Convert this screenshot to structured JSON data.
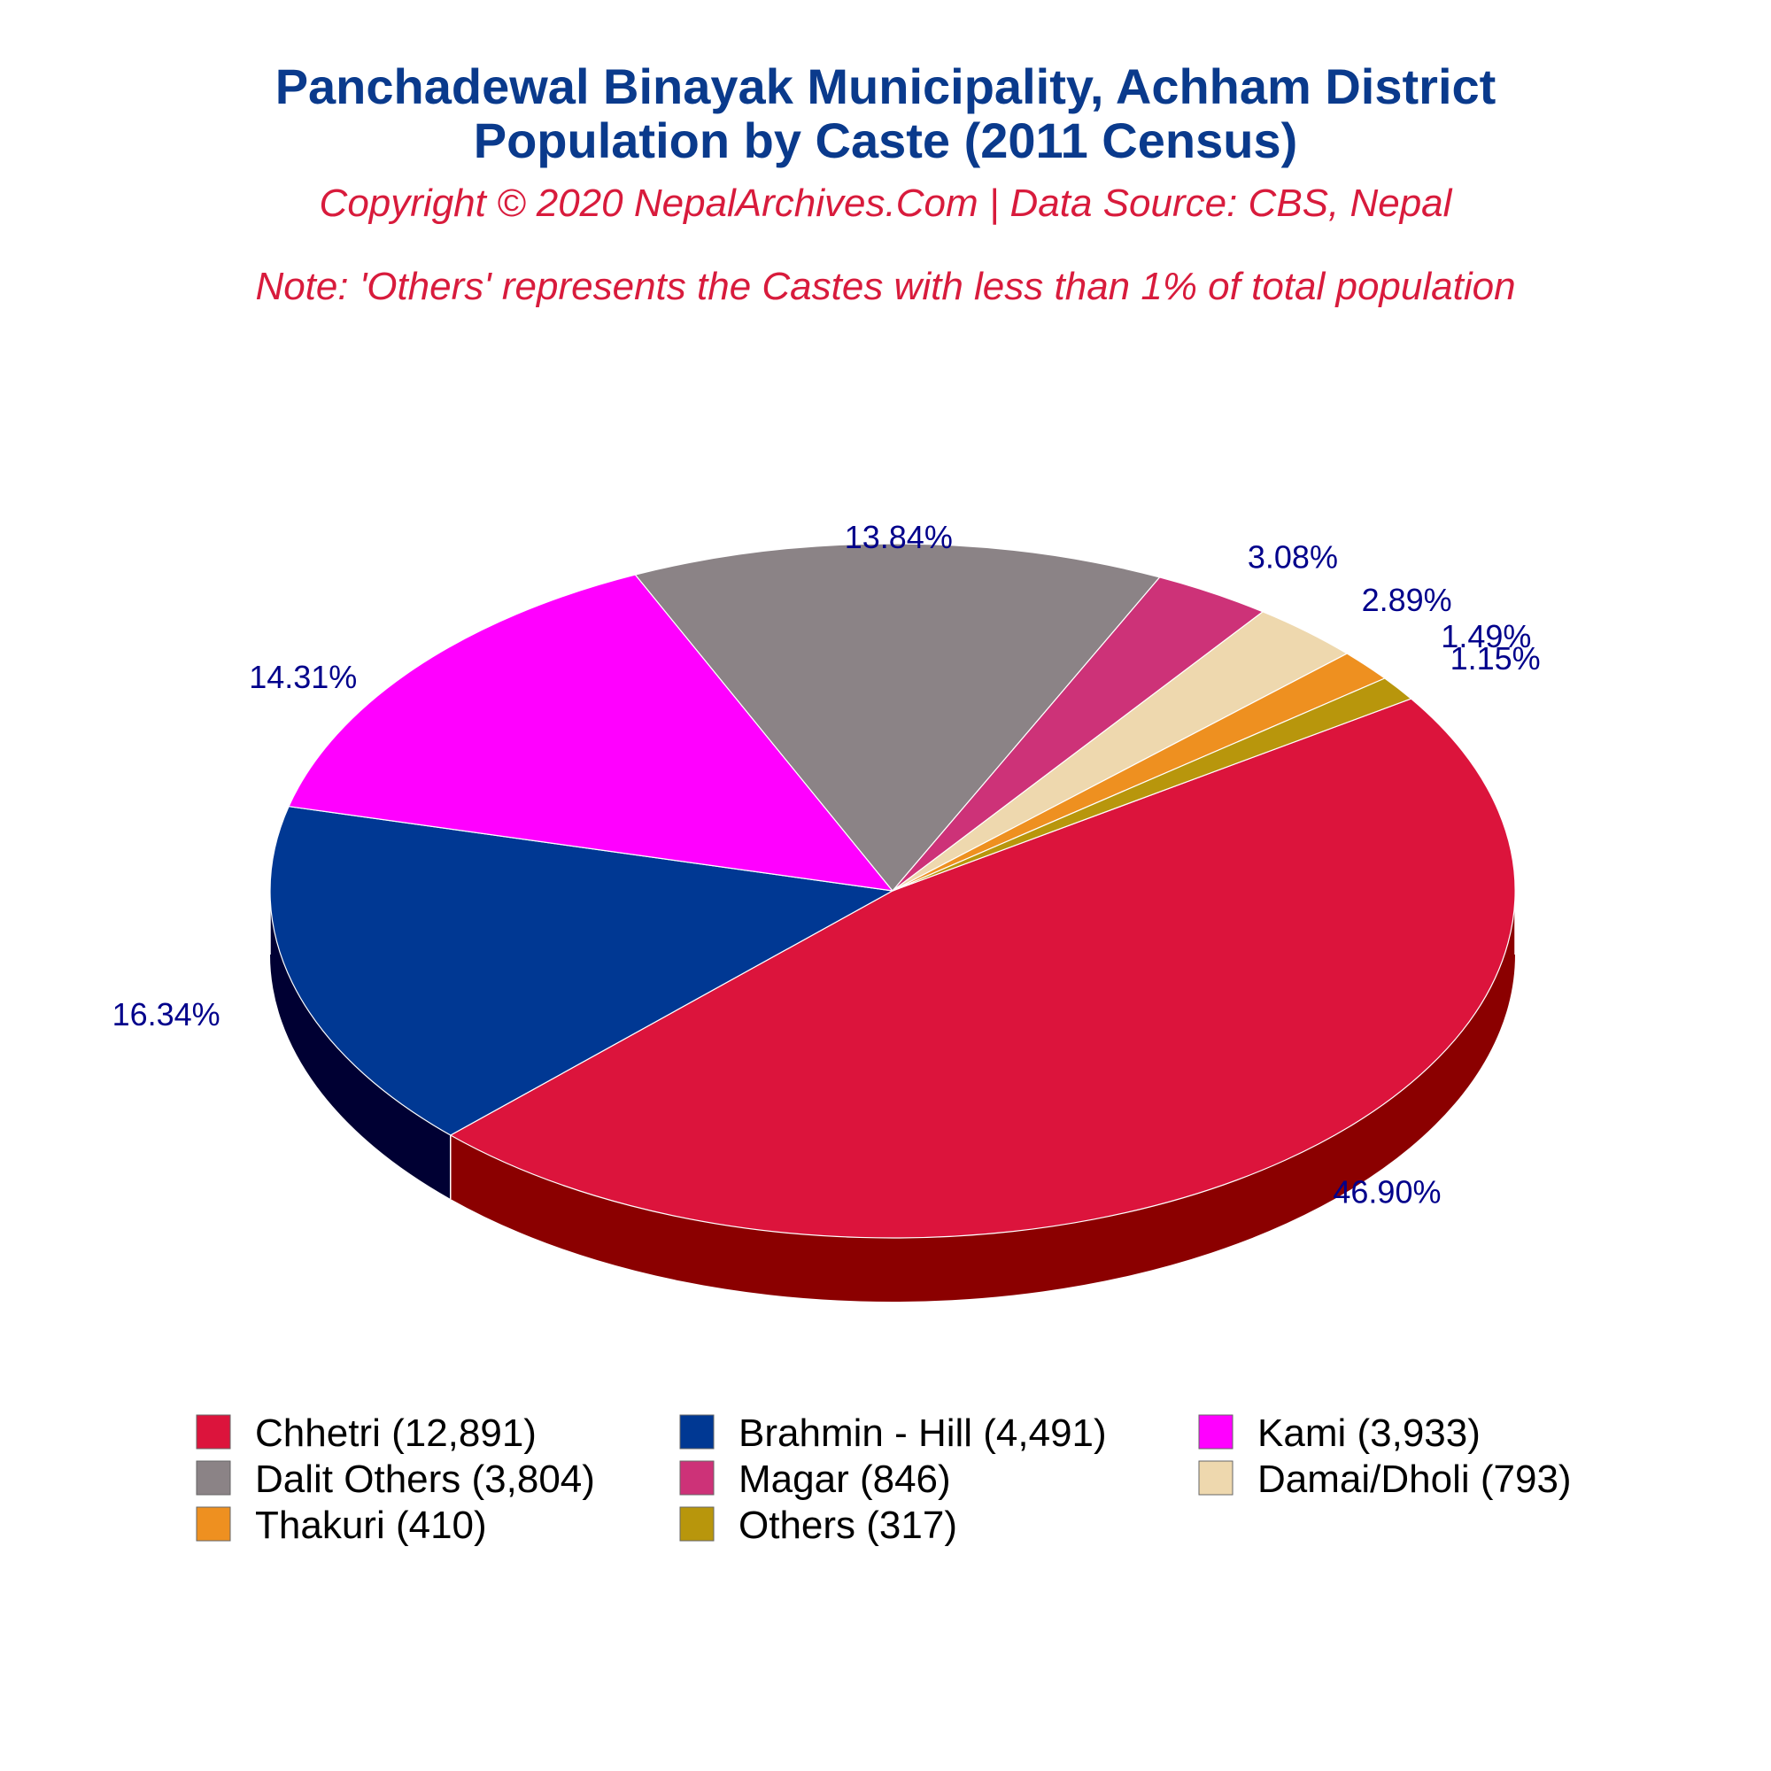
{
  "chart_data": {
    "type": "pie",
    "title_line1": "Panchadewal Binayak Municipality, Achham District",
    "title_line2": "Population by Caste (2011 Census)",
    "copyright": "Copyright © 2020 NepalArchives.Com | Data Source: CBS, Nepal",
    "note": "Note: 'Others' represents the Castes with less than 1% of total population",
    "slices": [
      {
        "name": "Chhetri",
        "value": 12891,
        "percent_label": "46.90%",
        "legend_label": "Chhetri (12,891)",
        "color": "#dc143c",
        "side_color": "#8b0000"
      },
      {
        "name": "Brahmin - Hill",
        "value": 4491,
        "percent_label": "16.34%",
        "legend_label": "Brahmin - Hill (4,491)",
        "color": "#003893",
        "side_color": "#000033"
      },
      {
        "name": "Kami",
        "value": 3933,
        "percent_label": "14.31%",
        "legend_label": "Kami (3,933)",
        "color": "#ff00ff",
        "side_color": "#a000a0"
      },
      {
        "name": "Dalit Others",
        "value": 3804,
        "percent_label": "13.84%",
        "legend_label": "Dalit Others (3,804)",
        "color": "#8b8386",
        "side_color": "#2e2729"
      },
      {
        "name": "Magar",
        "value": 846,
        "percent_label": "3.08%",
        "legend_label": "Magar (846)",
        "color": "#cd3278",
        "side_color": "#7a1d48"
      },
      {
        "name": "Damai/Dholi",
        "value": 793,
        "percent_label": "2.89%",
        "legend_label": "Damai/Dholi (793)",
        "color": "#eed8ae",
        "side_color": "#a08f6e"
      },
      {
        "name": "Thakuri",
        "value": 410,
        "percent_label": "1.49%",
        "legend_label": "Thakuri (410)",
        "color": "#ee9020",
        "side_color": "#9a5a10"
      },
      {
        "name": "Others",
        "value": 317,
        "percent_label": "1.15%",
        "legend_label": "Others (317)",
        "color": "#b8960c",
        "side_color": "#6b5707"
      }
    ]
  }
}
